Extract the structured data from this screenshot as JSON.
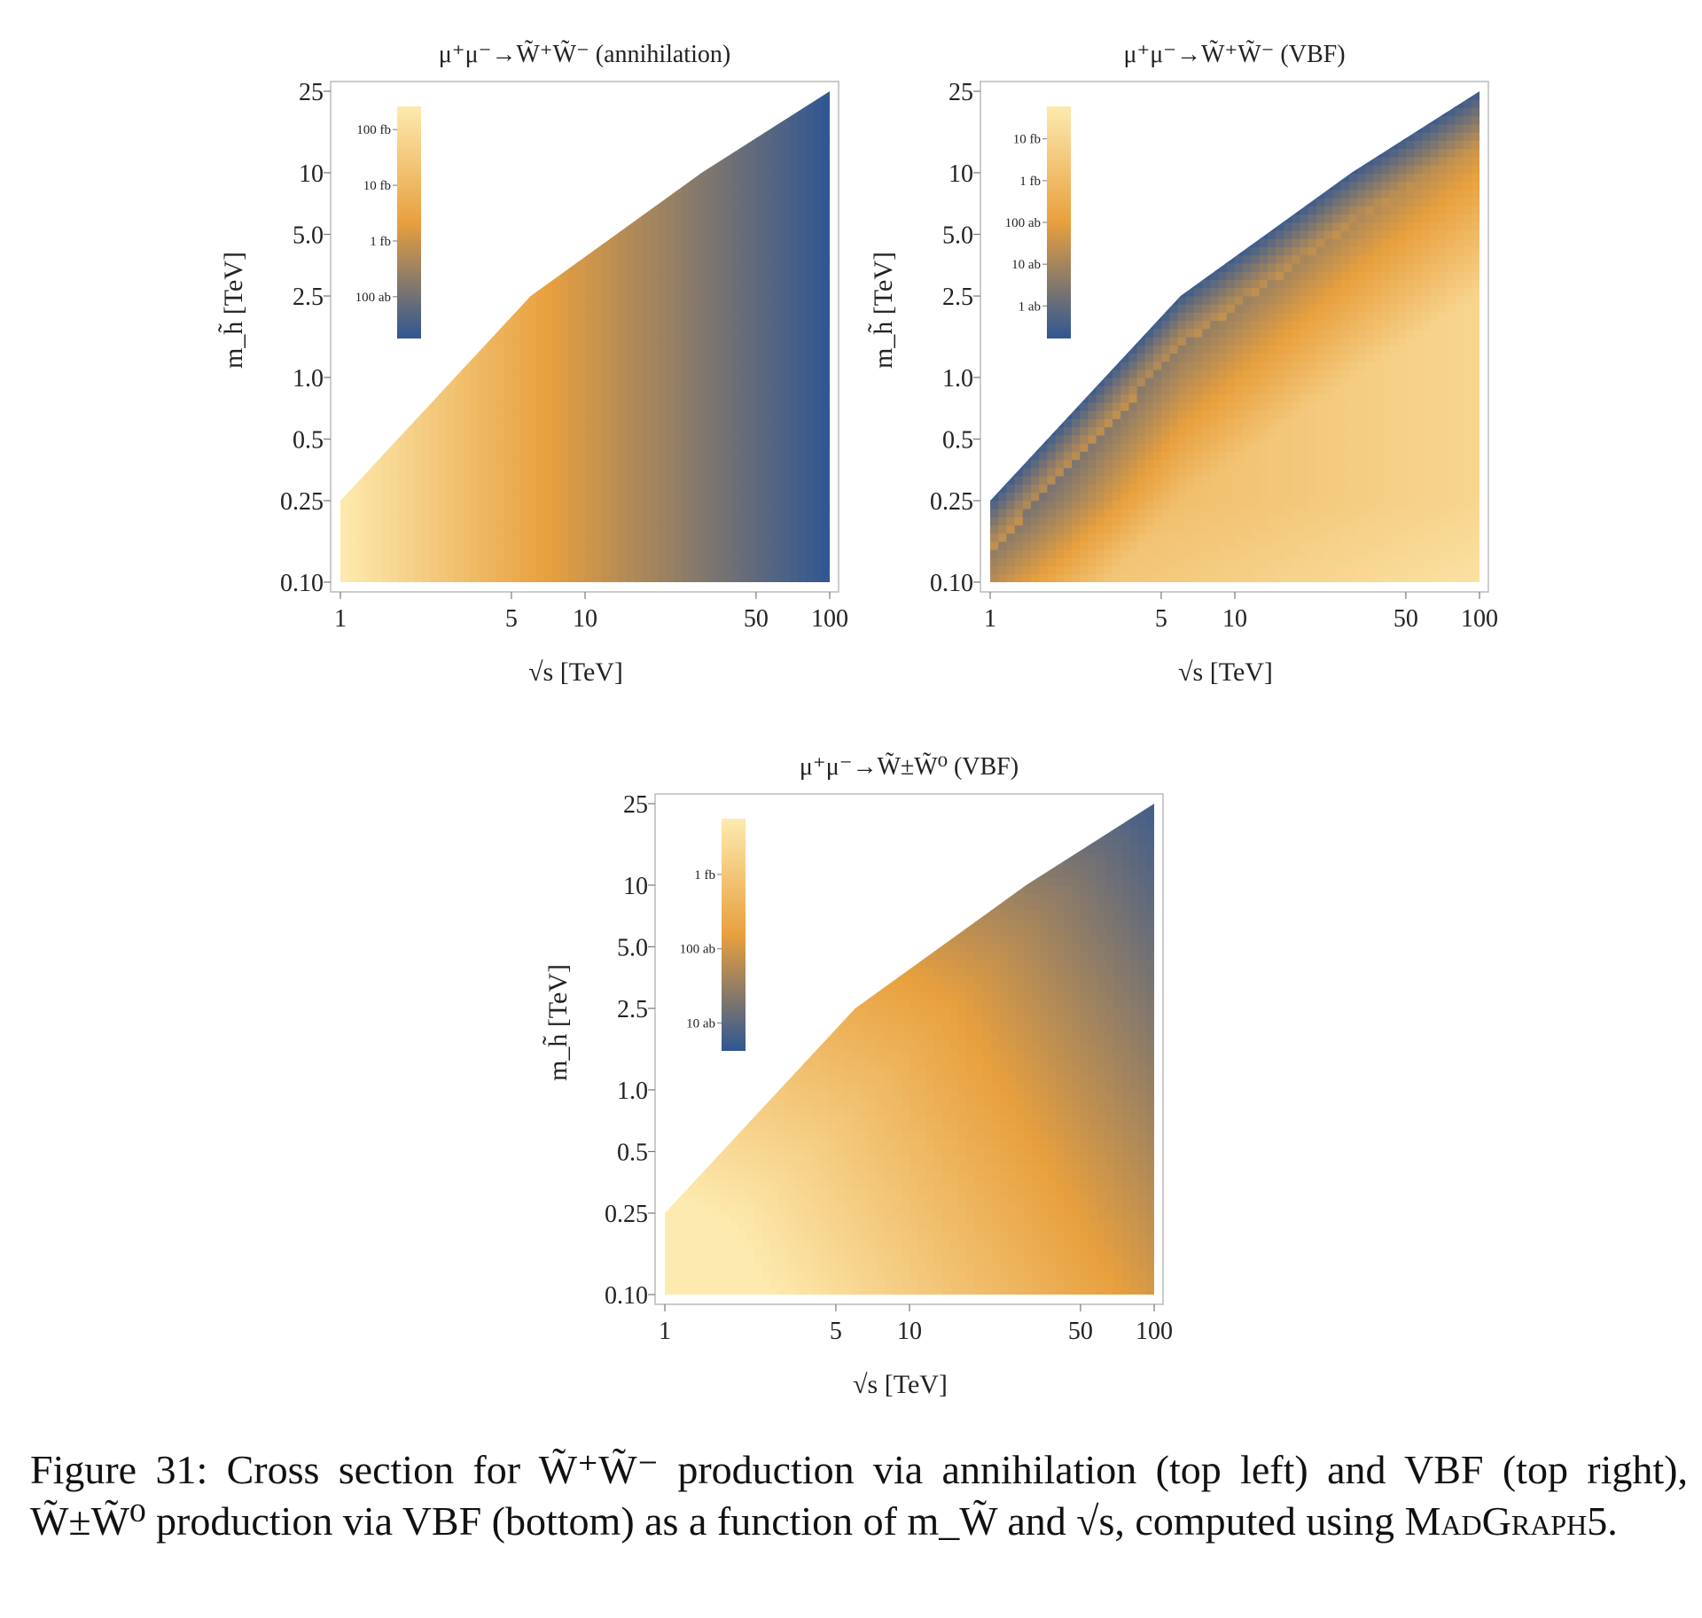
{
  "caption": {
    "prefix": "Figure 31:",
    "text": "Cross section for W̃⁺W̃⁻ production via annihilation (top left) and VBF (top right), W̃±W̃⁰ production via VBF (bottom) as a function of m_W̃ and √s, computed using",
    "program": "MadGraph5",
    "suffix": "."
  },
  "colors": {
    "low": "#2f5693",
    "mid": "#e8a03e",
    "high": "#fdeaaf",
    "frame": "#bbbbbb"
  },
  "chart_data": [
    {
      "type": "heatmap",
      "title": "μ⁺μ⁻→W̃⁺W̃⁻ (annihilation)",
      "xlabel": "√s [TeV]",
      "ylabel": "m_h̃ [TeV]",
      "xscale": "log",
      "yscale": "log",
      "xlim": [
        1,
        100
      ],
      "ylim": [
        0.1,
        25
      ],
      "x_ticks": [
        1,
        5,
        10,
        50,
        100
      ],
      "x_tick_labels": [
        "1",
        "5",
        "10",
        "50",
        "100"
      ],
      "y_ticks": [
        0.1,
        0.25,
        0.5,
        1.0,
        2.5,
        5.0,
        10,
        25
      ],
      "y_tick_labels": [
        "0.10",
        "0.25",
        "0.5",
        "1.0",
        "2.5",
        "5.0",
        "10",
        "25"
      ],
      "region_upper_boundary": [
        [
          1,
          0.25
        ],
        [
          6,
          2.5
        ],
        [
          30,
          10
        ],
        [
          100,
          25
        ]
      ],
      "legend": {
        "position": "top-left",
        "labels": [
          "100 fb",
          "10 fb",
          "1 fb",
          "100 ab"
        ],
        "label_levels": [
          0.9,
          0.66,
          0.42,
          0.18
        ]
      },
      "color_model": {
        "kind": "x",
        "x_peak": 7,
        "x_low": 100,
        "x_high": 1
      }
    },
    {
      "type": "heatmap",
      "title": "μ⁺μ⁻→W̃⁺W̃⁻ (VBF)",
      "xlabel": "√s [TeV]",
      "ylabel": "m_h̃ [TeV]",
      "xscale": "log",
      "yscale": "log",
      "xlim": [
        1,
        100
      ],
      "ylim": [
        0.1,
        25
      ],
      "x_ticks": [
        1,
        5,
        10,
        50,
        100
      ],
      "x_tick_labels": [
        "1",
        "5",
        "10",
        "50",
        "100"
      ],
      "y_ticks": [
        0.1,
        0.25,
        0.5,
        1.0,
        2.5,
        5.0,
        10,
        25
      ],
      "y_tick_labels": [
        "0.10",
        "0.25",
        "0.5",
        "1.0",
        "2.5",
        "5.0",
        "10",
        "25"
      ],
      "region_upper_boundary": [
        [
          1,
          0.25
        ],
        [
          6,
          2.5
        ],
        [
          30,
          10
        ],
        [
          100,
          25
        ]
      ],
      "legend": {
        "position": "top-left",
        "labels": [
          "10 fb",
          "1 fb",
          "100 ab",
          "10 ab",
          "1 ab"
        ],
        "label_levels": [
          0.86,
          0.68,
          0.5,
          0.32,
          0.14
        ]
      },
      "color_model": {
        "kind": "edge",
        "edge_low": 0.05
      }
    },
    {
      "type": "heatmap",
      "title": "μ⁺μ⁻→W̃±W̃⁰ (VBF)",
      "xlabel": "√s [TeV]",
      "ylabel": "m_h̃ [TeV]",
      "xscale": "log",
      "yscale": "log",
      "xlim": [
        1,
        100
      ],
      "ylim": [
        0.1,
        25
      ],
      "x_ticks": [
        1,
        5,
        10,
        50,
        100
      ],
      "x_tick_labels": [
        "1",
        "5",
        "10",
        "50",
        "100"
      ],
      "y_ticks": [
        0.1,
        0.25,
        0.5,
        1.0,
        2.5,
        5.0,
        10,
        25
      ],
      "y_tick_labels": [
        "0.10",
        "0.25",
        "0.5",
        "1.0",
        "2.5",
        "5.0",
        "10",
        "25"
      ],
      "region_upper_boundary": [
        [
          1,
          0.25
        ],
        [
          6,
          2.5
        ],
        [
          30,
          10
        ],
        [
          100,
          25
        ]
      ],
      "legend": {
        "position": "top-left",
        "labels": [
          "1 fb",
          "100 ab",
          "10 ab"
        ],
        "label_levels": [
          0.76,
          0.44,
          0.12
        ]
      },
      "color_model": {
        "kind": "corner"
      }
    }
  ]
}
